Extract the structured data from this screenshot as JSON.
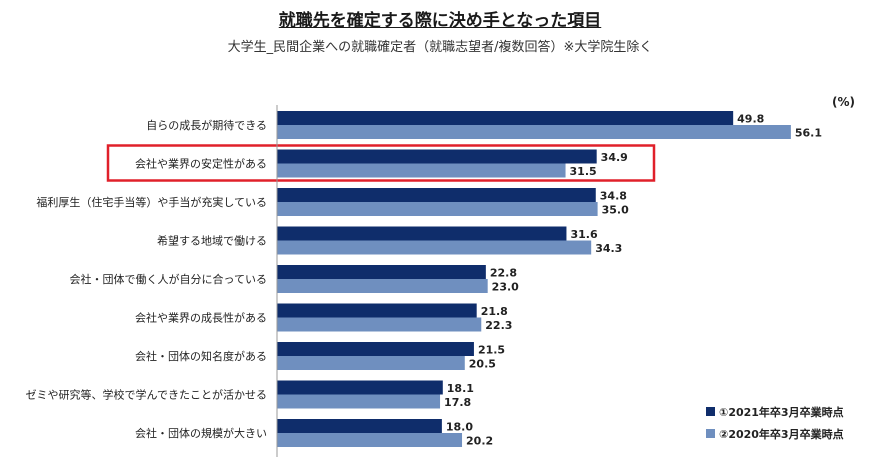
{
  "title": "就職先を確定する際に決め手となった項目",
  "subtitle": "大学生_民間企業への就職確定者（就職志望者/複数回答）※大学院生除く",
  "chart_data": {
    "type": "bar",
    "orientation": "horizontal",
    "unit": "(%)",
    "categories": [
      "自らの成長が期待できる",
      "会社や業界の安定性がある",
      "福利厚生（住宅手当等）や手当が充実している",
      "希望する地域で働ける",
      "会社・団体で働く人が自分に合っている",
      "会社や業界の成長性がある",
      "会社・団体の知名度がある",
      "ゼミや研究等、学校で学んできたことが活かせる",
      "会社・団体の規模が大きい"
    ],
    "series": [
      {
        "name": "①2021年卒3月卒業時点",
        "color": "#0f2d6b",
        "values": [
          49.8,
          34.9,
          34.8,
          31.6,
          22.8,
          21.8,
          21.5,
          18.1,
          18.0
        ]
      },
      {
        "name": "②2020年卒3月卒業時点",
        "color": "#6f8fbf",
        "values": [
          56.1,
          31.5,
          35.0,
          34.3,
          23.0,
          22.3,
          20.5,
          17.8,
          20.2
        ]
      }
    ],
    "highlight_index": 1,
    "highlight_color": "#e0202a",
    "legend_position": "bottom-right",
    "grid": false
  }
}
